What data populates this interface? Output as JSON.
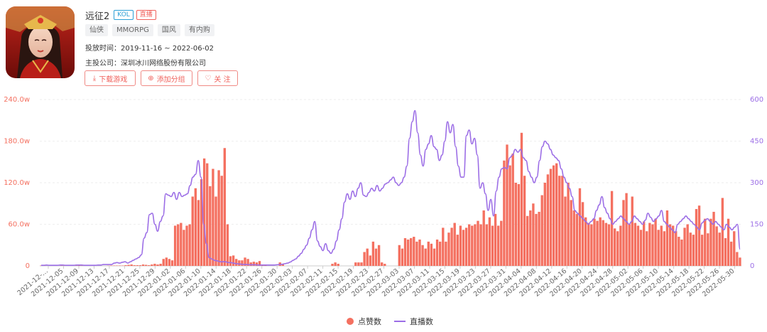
{
  "game": {
    "title": "远征2",
    "badges": [
      "KOL",
      "直播"
    ],
    "tags": [
      "仙侠",
      "MMORPG",
      "国风",
      "有内购"
    ],
    "launch_time": "投放时间：2019-11-16 ~ 2022-06-02",
    "publisher": "主投公司：深圳冰川网络股份有限公司",
    "buttons": {
      "download": "下载游戏",
      "add_group": "添加分组",
      "follow": "关 注"
    },
    "icons": {
      "download": "download-icon",
      "add_group": "plus-circle-icon",
      "follow": "heart-icon"
    }
  },
  "chart_data": {
    "type": "bar+line",
    "colors": {
      "bars": "#f47060",
      "line": "#9c6ee6"
    },
    "left_axis": {
      "ticks": [
        "0",
        "60.0w",
        "120.0w",
        "180.0w",
        "240.0w"
      ],
      "max": 240
    },
    "right_axis": {
      "ticks": [
        "0",
        "150",
        "300",
        "450",
        "600"
      ],
      "max": 600
    },
    "x_tick_labels": [
      "2021-12-…",
      "2021-12-05",
      "2021-12-09",
      "2021-12-13",
      "2021-12-17",
      "2021-12-21",
      "2021-12-25",
      "2021-12-29",
      "2022-01-02",
      "2022-01-06",
      "2022-01-10",
      "2022-01-14",
      "2022-01-18",
      "2022-01-22",
      "2022-01-26",
      "2022-01-30",
      "2022-02-03",
      "2022-02-07",
      "2022-02-11",
      "2022-02-15",
      "2022-02-19",
      "2022-02-23",
      "2022-02-27",
      "2022-03-03",
      "2022-03-07",
      "2022-03-11",
      "2022-03-15",
      "2022-03-19",
      "2022-03-23",
      "2022-03-27",
      "2022-03-31",
      "2022-04-04",
      "2022-04-08",
      "2022-04-12",
      "2022-04-16",
      "2022-04-20",
      "2022-04-24",
      "2022-04-28",
      "2022-05-02",
      "2022-05-06",
      "2022-05-10",
      "2022-05-14",
      "2022-05-18",
      "2022-05-22",
      "2022-05-26",
      "2022-05-30"
    ],
    "series": [
      {
        "name": "点赞数",
        "type": "bar",
        "axis": "left",
        "values": [
          0.5,
          0.5,
          0,
          0,
          0,
          0,
          0,
          0.3,
          0.3,
          0,
          0,
          0,
          0.3,
          0.5,
          0.3,
          0.5,
          0,
          0,
          0,
          0,
          0,
          0,
          0,
          0.3,
          0.5,
          0.5,
          0.5,
          0.5,
          0.5,
          1,
          1.5,
          2,
          1,
          1,
          1,
          2,
          1.5,
          1,
          2,
          3,
          2,
          3,
          10,
          12,
          10,
          8,
          58,
          60,
          62,
          52,
          58,
          60,
          100,
          112,
          95,
          125,
          155,
          148,
          115,
          140,
          100,
          138,
          130,
          170,
          60,
          14,
          15,
          10,
          8,
          8,
          12,
          10,
          5,
          6,
          5,
          7,
          2,
          1,
          0,
          0,
          0,
          0,
          5,
          2,
          0,
          0,
          0,
          0,
          0,
          0,
          0,
          0,
          0,
          0,
          0,
          0,
          0,
          0,
          0,
          0,
          3,
          5,
          3,
          0,
          0,
          0,
          0,
          0,
          5,
          5,
          5,
          20,
          25,
          15,
          35,
          25,
          30,
          5,
          3,
          0,
          0,
          0,
          0,
          30,
          25,
          40,
          38,
          40,
          42,
          35,
          38,
          30,
          25,
          35,
          32,
          25,
          38,
          35,
          55,
          35,
          48,
          55,
          62,
          45,
          58,
          52,
          55,
          60,
          58,
          60,
          65,
          60,
          80,
          60,
          70,
          58,
          75,
          58,
          65,
          152,
          175,
          145,
          162,
          120,
          118,
          192,
          130,
          72,
          80,
          90,
          75,
          78,
          102,
          120,
          132,
          140,
          145,
          148,
          130,
          130,
          100,
          120,
          95,
          80,
          75,
          112,
          92,
          70,
          62,
          60,
          68,
          65,
          70,
          66,
          62,
          60,
          108,
          54,
          50,
          58,
          95,
          105,
          60,
          100,
          62,
          58,
          52,
          64,
          50,
          62,
          60,
          68,
          52,
          58,
          50,
          80,
          60,
          58,
          50,
          42,
          38,
          55,
          60,
          48,
          45,
          82,
          87,
          45,
          68,
          47,
          68,
          78,
          57,
          48,
          98,
          40,
          68,
          35,
          50,
          20,
          12
        ]
      },
      {
        "name": "直播数",
        "type": "line",
        "axis": "right",
        "values": [
          2,
          2,
          3,
          2,
          2,
          2,
          2,
          3,
          3,
          2,
          2,
          2,
          2,
          3,
          3,
          3,
          2,
          2,
          2,
          2,
          2,
          3,
          3,
          5,
          5,
          5,
          5,
          10,
          12,
          10,
          13,
          15,
          10,
          15,
          20,
          25,
          30,
          40,
          100,
          120,
          185,
          190,
          150,
          125,
          160,
          180,
          260,
          255,
          250,
          265,
          240,
          265,
          250,
          255,
          260,
          290,
          320,
          330,
          380,
          320,
          150,
          80,
          30,
          25,
          20,
          18,
          15,
          15,
          15,
          12,
          12,
          10,
          8,
          7,
          6,
          5,
          5,
          4,
          4,
          4,
          3,
          3,
          3,
          3,
          3,
          3,
          3,
          4,
          5,
          6,
          8,
          10,
          14,
          20,
          25,
          35,
          45,
          60,
          75,
          100,
          130,
          160,
          90,
          70,
          55,
          80,
          55,
          45,
          60,
          90,
          130,
          170,
          230,
          260,
          240,
          270,
          250,
          280,
          300,
          255,
          250,
          265,
          280,
          270,
          290,
          270,
          280,
          295,
          300,
          310,
          320,
          300,
          290,
          300,
          320,
          360,
          460,
          520,
          560,
          480,
          400,
          360,
          420,
          440,
          470,
          430,
          420,
          380,
          400,
          450,
          520,
          480,
          510,
          430,
          360,
          320,
          320,
          470,
          490,
          440,
          460,
          400,
          280,
          300,
          260,
          200,
          240,
          180,
          270,
          320,
          350,
          355,
          350,
          390,
          400,
          420,
          410,
          420,
          390,
          380,
          340,
          320,
          300,
          320,
          380,
          430,
          450,
          440,
          420,
          400,
          390,
          380,
          350,
          320,
          300,
          280,
          250,
          200,
          190,
          180,
          170,
          160,
          150,
          160,
          170,
          200,
          220,
          250,
          210,
          190,
          170,
          150,
          160,
          170,
          180,
          170,
          160,
          150,
          160,
          180,
          170,
          160,
          150,
          165,
          190,
          175,
          160,
          170,
          180,
          200,
          160,
          150,
          140,
          130,
          120,
          150,
          160,
          170,
          180,
          170,
          160,
          150,
          140,
          130,
          155,
          165,
          170,
          160,
          150,
          160,
          150,
          140,
          130,
          150,
          140,
          130,
          140,
          150,
          60
        ]
      }
    ]
  }
}
